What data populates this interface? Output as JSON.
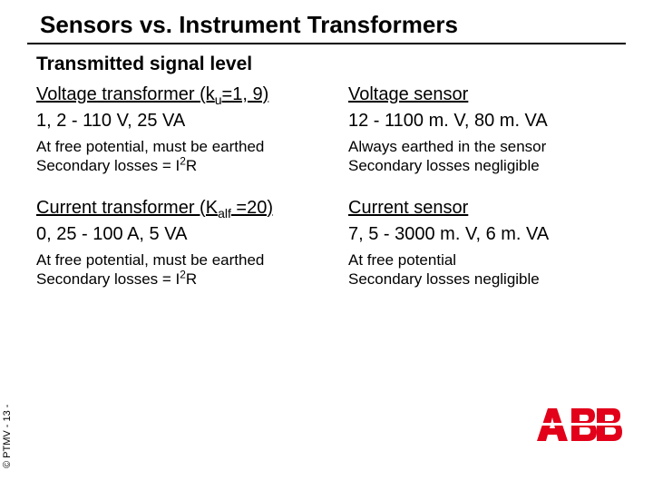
{
  "title": "Sensors vs. Instrument Transformers",
  "subtitle": "Transmitted signal level",
  "voltage": {
    "left_heading_html": "Voltage transformer (k<sub>u</sub>=1, 9)",
    "right_heading": "Voltage sensor",
    "left_spec": "1, 2 - 110 V,   25 VA",
    "right_spec": "12 - 1100 m. V,    80 m. VA",
    "left_note_html": "At free potential, must be earthed<br>Secondary losses = I<sup>2</sup>R",
    "right_note_html": "Always earthed in the sensor<br>Secondary losses negligible"
  },
  "current": {
    "left_heading_html": "Current transformer (K<sub>alf</sub> =20)",
    "right_heading": "Current sensor",
    "left_spec": "0, 25 - 100 A, 5 VA",
    "right_spec": "7, 5 - 3000 m. V,     6 m. VA",
    "left_note_html": "At free potential, must be earthed<br>Secondary losses = I<sup>2</sup>R",
    "right_note_html": "At free potential<br>Secondary losses negligible"
  },
  "footer": "© PTMV - 13 -",
  "logo": {
    "text": "ABB",
    "color": "#e2001a"
  }
}
